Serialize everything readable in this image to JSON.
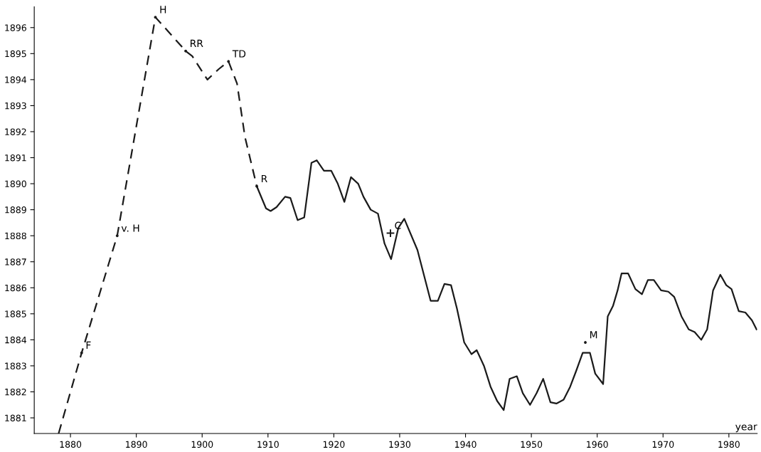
{
  "chart_data": {
    "type": "line",
    "xlabel": "year",
    "xlim": [
      1874.5,
      1984.3
    ],
    "ylim": [
      1880.4,
      1896.8
    ],
    "xticks": [
      1880,
      1890,
      1900,
      1910,
      1920,
      1930,
      1940,
      1950,
      1960,
      1970,
      1980
    ],
    "yticks": [
      1881,
      1882,
      1883,
      1884,
      1885,
      1886,
      1887,
      1888,
      1889,
      1890,
      1891,
      1892,
      1893,
      1894,
      1895,
      1896
    ],
    "grid": false,
    "legend": false,
    "series": [
      {
        "type": "line",
        "line_style": "dashed",
        "color": "#1a1a1a",
        "x": [
          1878.2,
          1881.7,
          1887.1,
          1892.9,
          1897.5,
          1898.5,
          1900.8,
          1902.5,
          1904.0,
          1905.3,
          1906.5,
          1908.3
        ],
        "values": [
          1880.4,
          1883.5,
          1888.0,
          1896.4,
          1895.1,
          1894.9,
          1894.0,
          1894.4,
          1894.7,
          1893.85,
          1891.8,
          1889.9
        ]
      },
      {
        "type": "line",
        "line_style": "solid",
        "color": "#1a1a1a",
        "x": [
          1908.3,
          1909.7,
          1910.4,
          1911.3,
          1912.6,
          1913.4,
          1914.5,
          1915.5,
          1916.6,
          1917.4,
          1918.5,
          1919.6,
          1920.6,
          1921.6,
          1922.6,
          1923.7,
          1924.5,
          1925.6,
          1926.7,
          1927.7,
          1928.7,
          1929.8,
          1930.7,
          1932.7,
          1934.7,
          1935.8,
          1936.8,
          1937.8,
          1938.7,
          1939.8,
          1940.9,
          1941.7,
          1942.8,
          1943.8,
          1944.8,
          1945.8,
          1946.7,
          1947.8,
          1948.7,
          1949.8,
          1950.8,
          1951.8,
          1952.9,
          1953.8,
          1954.9,
          1955.9,
          1956.8,
          1957.8,
          1958.9,
          1959.7,
          1960.9,
          1961.6,
          1962.4,
          1963.1,
          1963.7,
          1964.7,
          1965.8,
          1966.8,
          1967.7,
          1968.6,
          1969.7,
          1970.8,
          1971.7,
          1972.8,
          1973.9,
          1974.8,
          1975.8,
          1976.7,
          1977.6,
          1978.7,
          1979.6,
          1980.4,
          1981.5,
          1982.5,
          1983.5,
          1984.2
        ],
        "values": [
          1889.9,
          1889.05,
          1888.95,
          1889.1,
          1889.5,
          1889.45,
          1888.6,
          1888.7,
          1890.8,
          1890.9,
          1890.5,
          1890.5,
          1890.0,
          1889.3,
          1890.25,
          1890.0,
          1889.5,
          1889.0,
          1888.85,
          1887.7,
          1887.1,
          1888.3,
          1888.65,
          1887.45,
          1885.5,
          1885.5,
          1886.15,
          1886.1,
          1885.2,
          1883.9,
          1883.45,
          1883.6,
          1883.0,
          1882.2,
          1881.65,
          1881.3,
          1882.5,
          1882.6,
          1881.95,
          1881.5,
          1881.95,
          1882.5,
          1881.6,
          1881.55,
          1881.7,
          1882.2,
          1882.8,
          1883.5,
          1883.5,
          1882.7,
          1882.3,
          1884.9,
          1885.3,
          1885.9,
          1886.55,
          1886.55,
          1885.95,
          1885.75,
          1886.3,
          1886.3,
          1885.9,
          1885.85,
          1885.65,
          1884.9,
          1884.4,
          1884.3,
          1884.0,
          1884.4,
          1885.9,
          1886.5,
          1886.1,
          1885.95,
          1885.1,
          1885.05,
          1884.75,
          1884.4
        ]
      },
      {
        "type": "scatter",
        "marker": "circle",
        "color": "#1a1a1a",
        "x": [
          1881.7,
          1887.1,
          1892.9,
          1897.5,
          1904.0,
          1908.3,
          1958.2
        ],
        "values": [
          1883.5,
          1888.0,
          1896.4,
          1895.1,
          1894.7,
          1889.9,
          1883.9
        ]
      },
      {
        "type": "scatter",
        "marker": "cross",
        "color": "#1a1a1a",
        "x": [
          1928.6
        ],
        "values": [
          1888.1
        ]
      }
    ],
    "annotations": [
      {
        "text": "F",
        "x": 1881.7,
        "y": 1883.5
      },
      {
        "text": "v. H",
        "x": 1887.1,
        "y": 1888.0
      },
      {
        "text": "H",
        "x": 1892.9,
        "y": 1896.4
      },
      {
        "text": "RR",
        "x": 1897.5,
        "y": 1895.1
      },
      {
        "text": "TD",
        "x": 1904.0,
        "y": 1894.7
      },
      {
        "text": "R",
        "x": 1908.3,
        "y": 1889.9
      },
      {
        "text": "C",
        "x": 1928.6,
        "y": 1888.1
      },
      {
        "text": "M",
        "x": 1958.2,
        "y": 1883.9
      }
    ]
  }
}
